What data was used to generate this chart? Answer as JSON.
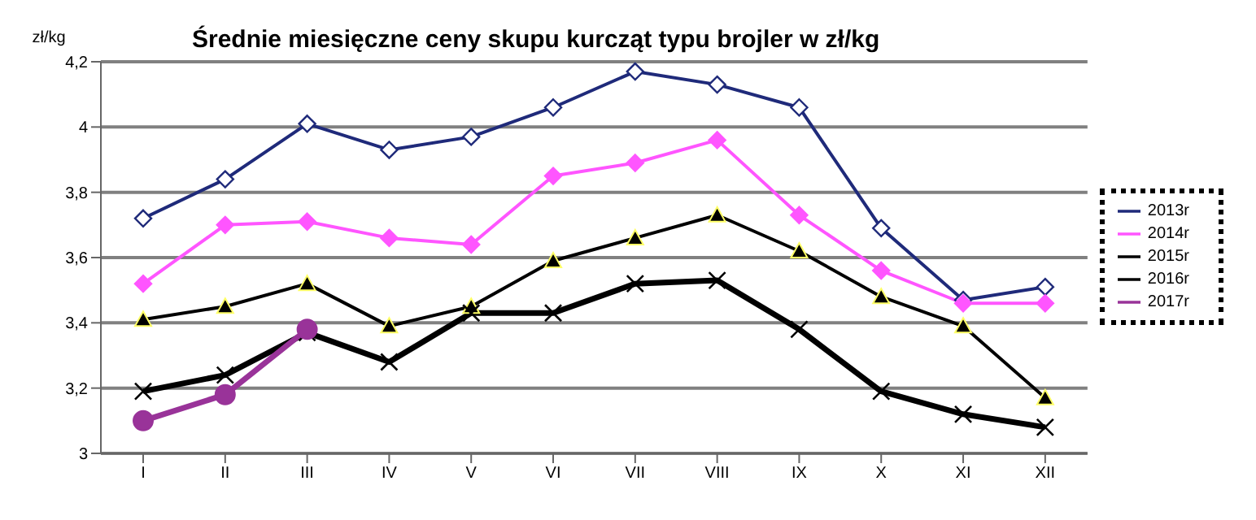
{
  "chart_data": {
    "type": "line",
    "title": "Średnie miesięczne ceny skupu kurcząt typu brojler w zł/kg",
    "ylabel": "zł/kg",
    "categories": [
      "I",
      "II",
      "III",
      "IV",
      "V",
      "VI",
      "VII",
      "VIII",
      "IX",
      "X",
      "XI",
      "XII"
    ],
    "ylim": [
      3,
      4.2
    ],
    "yticks": [
      3,
      {
        "value": 3.2,
        "label": "3,2"
      },
      {
        "value": 3.4,
        "label": "3,4"
      },
      {
        "value": 3.6,
        "label": "3,6"
      },
      {
        "value": 3.8,
        "label": "3,8"
      },
      4,
      {
        "value": 4.2,
        "label": "4,2"
      }
    ],
    "grid": "y",
    "legend": "right",
    "series": [
      {
        "name": "2013r",
        "color": "#1f2a7a",
        "marker": "diamond",
        "values": [
          3.72,
          3.84,
          4.01,
          3.93,
          3.97,
          4.06,
          4.17,
          4.13,
          4.06,
          3.69,
          3.47,
          3.51
        ]
      },
      {
        "name": "2014r",
        "color": "#ff55ff",
        "marker": "diamond",
        "values": [
          3.52,
          3.7,
          3.71,
          3.66,
          3.64,
          3.85,
          3.89,
          3.96,
          3.73,
          3.56,
          3.46,
          3.46
        ]
      },
      {
        "name": "2015r",
        "color": "#000000",
        "marker": "triangle",
        "values": [
          3.41,
          3.45,
          3.52,
          3.39,
          3.45,
          3.59,
          3.66,
          3.73,
          3.62,
          3.48,
          3.39,
          3.17
        ]
      },
      {
        "name": "2016r",
        "color": "#000000",
        "marker": "cross",
        "values": [
          3.19,
          3.24,
          3.37,
          3.28,
          3.43,
          3.43,
          3.52,
          3.53,
          3.38,
          3.19,
          3.12,
          3.08
        ]
      },
      {
        "name": "2017r",
        "color": "#993399",
        "marker": "circle",
        "values": [
          3.1,
          3.18,
          3.38,
          null,
          null,
          null,
          null,
          null,
          null,
          null,
          null,
          null
        ]
      }
    ]
  }
}
